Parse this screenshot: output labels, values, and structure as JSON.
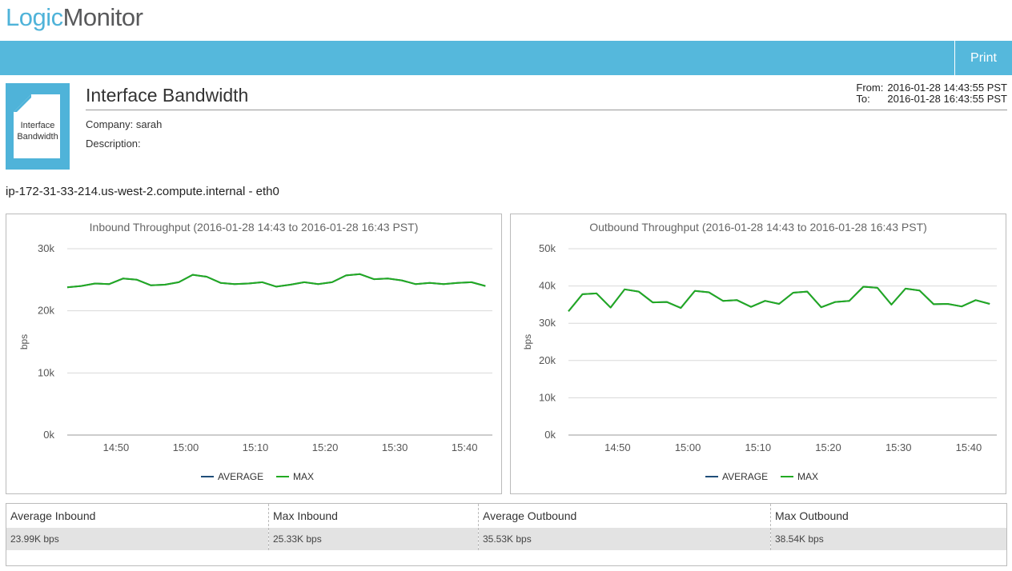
{
  "logo": {
    "part1": "Logic",
    "part2": "Monitor"
  },
  "toolbar": {
    "print_label": "Print"
  },
  "report": {
    "icon_line1": "Interface",
    "icon_line2": "Bandwidth",
    "title": "Interface Bandwidth",
    "company_label": "Company:",
    "company_value": "sarah",
    "description_label": "Description:",
    "description_value": "",
    "from_label": "From:",
    "from_value": "2016-01-28 14:43:55 PST",
    "to_label": "To:",
    "to_value": "2016-01-28 16:43:55 PST"
  },
  "device_name": "ip-172-31-33-214.us-west-2.compute.internal - eth0",
  "colors": {
    "average": "#1f4e79",
    "max": "#22aa22",
    "accent": "#55b8dc"
  },
  "chart_data": [
    {
      "type": "line",
      "title": "Inbound Throughput (2016-01-28 14:43 to 2016-01-28 16:43 PST)",
      "ylabel": "bps",
      "ylim": [
        0,
        30000
      ],
      "yticks": [
        0,
        10000,
        20000,
        30000
      ],
      "ytick_labels": [
        "0k",
        "10k",
        "20k",
        "30k"
      ],
      "xlim": [
        "14:43",
        "15:44"
      ],
      "xticks": [
        "14:50",
        "15:00",
        "15:10",
        "15:20",
        "15:30",
        "15:40"
      ],
      "legend": [
        "AVERAGE",
        "MAX"
      ],
      "series": [
        {
          "name": "MAX",
          "x": [
            "14:43",
            "14:45",
            "14:47",
            "14:49",
            "14:51",
            "14:53",
            "14:55",
            "14:57",
            "14:59",
            "15:01",
            "15:03",
            "15:05",
            "15:07",
            "15:09",
            "15:11",
            "15:13",
            "15:15",
            "15:17",
            "15:19",
            "15:21",
            "15:23",
            "15:25",
            "15:27",
            "15:29",
            "15:31",
            "15:33",
            "15:35",
            "15:37",
            "15:39",
            "15:41",
            "15:43"
          ],
          "values": [
            23800,
            24000,
            24400,
            24300,
            25200,
            25000,
            24100,
            24200,
            24600,
            25800,
            25500,
            24500,
            24300,
            24400,
            24600,
            23900,
            24200,
            24600,
            24300,
            24600,
            25700,
            25900,
            25100,
            25200,
            24900,
            24300,
            24500,
            24300,
            24500,
            24600,
            24000
          ]
        },
        {
          "name": "AVERAGE",
          "x": [
            "14:43",
            "14:45",
            "14:47",
            "14:49",
            "14:51",
            "14:53",
            "14:55",
            "14:57",
            "14:59",
            "15:01",
            "15:03",
            "15:05",
            "15:07",
            "15:09",
            "15:11",
            "15:13",
            "15:15",
            "15:17",
            "15:19",
            "15:21",
            "15:23",
            "15:25",
            "15:27",
            "15:29",
            "15:31",
            "15:33",
            "15:35",
            "15:37",
            "15:39",
            "15:41",
            "15:43"
          ],
          "values": [
            23800,
            24000,
            24400,
            24300,
            25200,
            25000,
            24100,
            24200,
            24600,
            25800,
            25500,
            24500,
            24300,
            24400,
            24600,
            23900,
            24200,
            24600,
            24300,
            24600,
            25700,
            25900,
            25100,
            25200,
            24900,
            24300,
            24500,
            24300,
            24500,
            24600,
            24000
          ]
        }
      ]
    },
    {
      "type": "line",
      "title": "Outbound Throughput (2016-01-28 14:43 to 2016-01-28 16:43 PST)",
      "ylabel": "bps",
      "ylim": [
        0,
        50000
      ],
      "yticks": [
        0,
        10000,
        20000,
        30000,
        40000,
        50000
      ],
      "ytick_labels": [
        "0k",
        "10k",
        "20k",
        "30k",
        "40k",
        "50k"
      ],
      "xlim": [
        "14:43",
        "15:44"
      ],
      "xticks": [
        "14:50",
        "15:00",
        "15:10",
        "15:20",
        "15:30",
        "15:40"
      ],
      "legend": [
        "AVERAGE",
        "MAX"
      ],
      "series": [
        {
          "name": "MAX",
          "x": [
            "14:43",
            "14:45",
            "14:47",
            "14:49",
            "14:51",
            "14:53",
            "14:55",
            "14:57",
            "14:59",
            "15:01",
            "15:03",
            "15:05",
            "15:07",
            "15:09",
            "15:11",
            "15:13",
            "15:15",
            "15:17",
            "15:19",
            "15:21",
            "15:23",
            "15:25",
            "15:27",
            "15:29",
            "15:31",
            "15:33",
            "15:35",
            "15:37",
            "15:39",
            "15:41",
            "15:43"
          ],
          "values": [
            33200,
            37800,
            38000,
            34200,
            39100,
            38500,
            35600,
            35700,
            34100,
            38700,
            38300,
            36000,
            36200,
            34400,
            36000,
            35200,
            38200,
            38500,
            34300,
            35700,
            36000,
            39800,
            39500,
            35000,
            39300,
            38800,
            35100,
            35200,
            34500,
            36200,
            35200
          ]
        },
        {
          "name": "AVERAGE",
          "x": [
            "14:43",
            "14:45",
            "14:47",
            "14:49",
            "14:51",
            "14:53",
            "14:55",
            "14:57",
            "14:59",
            "15:01",
            "15:03",
            "15:05",
            "15:07",
            "15:09",
            "15:11",
            "15:13",
            "15:15",
            "15:17",
            "15:19",
            "15:21",
            "15:23",
            "15:25",
            "15:27",
            "15:29",
            "15:31",
            "15:33",
            "15:35",
            "15:37",
            "15:39",
            "15:41",
            "15:43"
          ],
          "values": [
            33200,
            37800,
            38000,
            34200,
            39100,
            38500,
            35600,
            35700,
            34100,
            38700,
            38300,
            36000,
            36200,
            34400,
            36000,
            35200,
            38200,
            38500,
            34300,
            35700,
            36000,
            39800,
            39500,
            35000,
            39300,
            38800,
            35100,
            35200,
            34500,
            36200,
            35200
          ]
        }
      ]
    }
  ],
  "stats": [
    {
      "label": "Average Inbound",
      "value": "23.99K bps"
    },
    {
      "label": "Max Inbound",
      "value": "25.33K bps"
    },
    {
      "label": "Average Outbound",
      "value": "35.53K bps"
    },
    {
      "label": "Max Outbound",
      "value": "38.54K bps"
    }
  ]
}
